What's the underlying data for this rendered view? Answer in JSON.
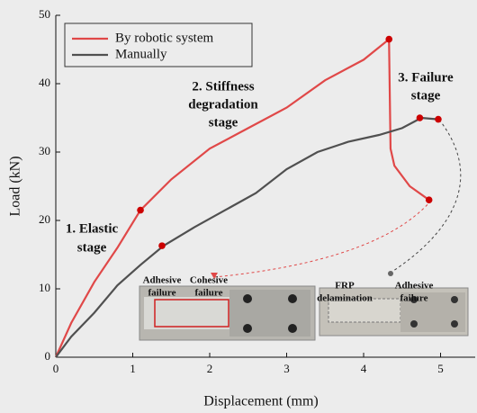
{
  "chart_data": {
    "type": "line",
    "xlabel": "Displacement (mm)",
    "ylabel": "Load (kN)",
    "xlim": [
      0,
      5.45
    ],
    "xticks": [
      0,
      1,
      2,
      3,
      4,
      5
    ],
    "ylim": [
      0,
      50
    ],
    "yticks": [
      0,
      10,
      20,
      30,
      40,
      50
    ],
    "legend": "upper left",
    "series": [
      {
        "name": "By robotic system",
        "color": "#e04848",
        "x": [
          0,
          0.2,
          0.5,
          0.8,
          1.1,
          1.5,
          2.0,
          2.5,
          3.0,
          3.5,
          4.0,
          4.33,
          4.35,
          4.4,
          4.6,
          4.85
        ],
        "values": [
          0,
          5,
          11,
          16,
          21.5,
          26,
          30.5,
          33.5,
          36.5,
          40.5,
          43.5,
          46.5,
          30.5,
          28,
          25,
          23
        ]
      },
      {
        "name": "Manually",
        "color": "#505050",
        "x": [
          0,
          0.2,
          0.5,
          0.8,
          1.1,
          1.4,
          1.8,
          2.2,
          2.6,
          3.0,
          3.4,
          3.8,
          4.2,
          4.5,
          4.75,
          4.95
        ],
        "values": [
          0,
          3,
          6.5,
          10.5,
          13.5,
          16.3,
          19,
          21.5,
          24,
          27.5,
          30,
          31.5,
          32.5,
          33.5,
          35,
          34.8
        ]
      }
    ],
    "markers": [
      {
        "x": 1.1,
        "y": 21.5
      },
      {
        "x": 4.33,
        "y": 46.5
      },
      {
        "x": 4.85,
        "y": 23
      },
      {
        "x": 1.38,
        "y": 16.3
      },
      {
        "x": 4.73,
        "y": 35
      },
      {
        "x": 4.97,
        "y": 34.8
      }
    ],
    "marker_color": "#cc0000",
    "annotations": [
      {
        "text": [
          "1. Elastic",
          "stage"
        ]
      },
      {
        "text": [
          "2. Stiffness",
          "degradation",
          "stage"
        ]
      },
      {
        "text": [
          "3. Failure",
          "stage"
        ]
      },
      {
        "text": [
          "Adhesive",
          "failure"
        ]
      },
      {
        "text": [
          "Cohesive",
          "failure"
        ]
      },
      {
        "text": [
          "FRP",
          "delamination"
        ]
      },
      {
        "text": [
          "Adhesive",
          "failure"
        ]
      }
    ]
  }
}
